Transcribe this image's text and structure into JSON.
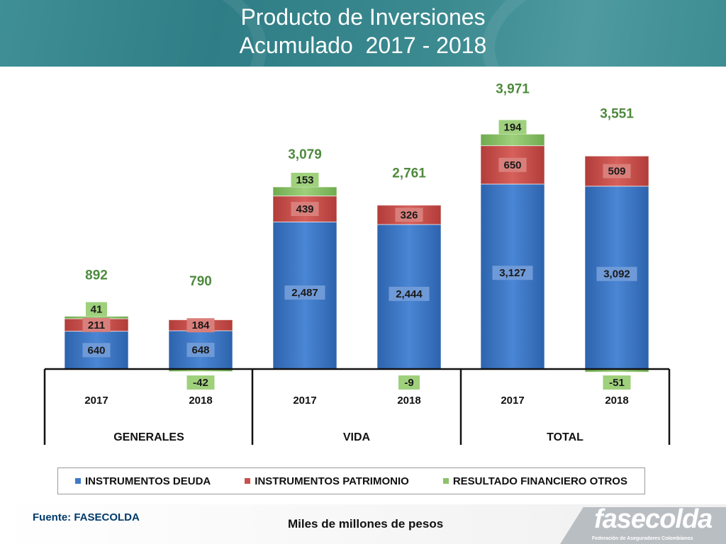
{
  "header": {
    "title_line1": "Producto de Inversiones",
    "title_line2": "Acumulado  2017 - 2018"
  },
  "chart_data": {
    "type": "bar",
    "stacked": true,
    "groups": [
      {
        "name": "GENERALES",
        "years": [
          "2017",
          "2018"
        ]
      },
      {
        "name": "VIDA",
        "years": [
          "2017",
          "2018"
        ]
      },
      {
        "name": "TOTAL",
        "years": [
          "2017",
          "2018"
        ]
      }
    ],
    "categories": [
      "GENERALES 2017",
      "GENERALES 2018",
      "VIDA 2017",
      "VIDA 2018",
      "TOTAL 2017",
      "TOTAL 2018"
    ],
    "series": [
      {
        "name": "INSTRUMENTOS DEUDA",
        "color": "#3f79c8",
        "values": [
          640,
          648,
          2487,
          2444,
          3127,
          3092
        ]
      },
      {
        "name": "INSTRUMENTOS PATRIMONIO",
        "color": "#c9504c",
        "values": [
          211,
          184,
          439,
          326,
          650,
          509
        ]
      },
      {
        "name": "RESULTADO FINANCIERO OTROS",
        "color": "#8dc26a",
        "values": [
          41,
          -42,
          153,
          -9,
          194,
          -51
        ]
      }
    ],
    "value_labels": {
      "INSTRUMENTOS DEUDA": [
        "640",
        "648",
        "2,487",
        "2,444",
        "3,127",
        "3,092"
      ],
      "INSTRUMENTOS PATRIMONIO": [
        "211",
        "184",
        "439",
        "326",
        "650",
        "509"
      ],
      "RESULTADO FINANCIERO OTROS": [
        "41",
        "-42",
        "153",
        "-9",
        "194",
        "-51"
      ]
    },
    "totals": [
      892,
      790,
      3079,
      2761,
      3971,
      3551
    ],
    "total_labels": [
      "892",
      "790",
      "3,079",
      "2,761",
      "3,971",
      "3,551"
    ],
    "ylim": [
      -100,
      4000
    ],
    "legend_position": "bottom",
    "grid": false
  },
  "legend": {
    "items": [
      {
        "label": "INSTRUMENTOS DEUDA",
        "color": "#3f79c8"
      },
      {
        "label": "INSTRUMENTOS PATRIMONIO",
        "color": "#c9504c"
      },
      {
        "label": "RESULTADO FINANCIERO OTROS",
        "color": "#8dc26a"
      }
    ]
  },
  "footer": {
    "source": "Fuente: FASECOLDA",
    "units": "Miles de millones de pesos",
    "logo_text": "fasecolda",
    "logo_tagline": "Federación de Aseguradores Colombianos"
  }
}
